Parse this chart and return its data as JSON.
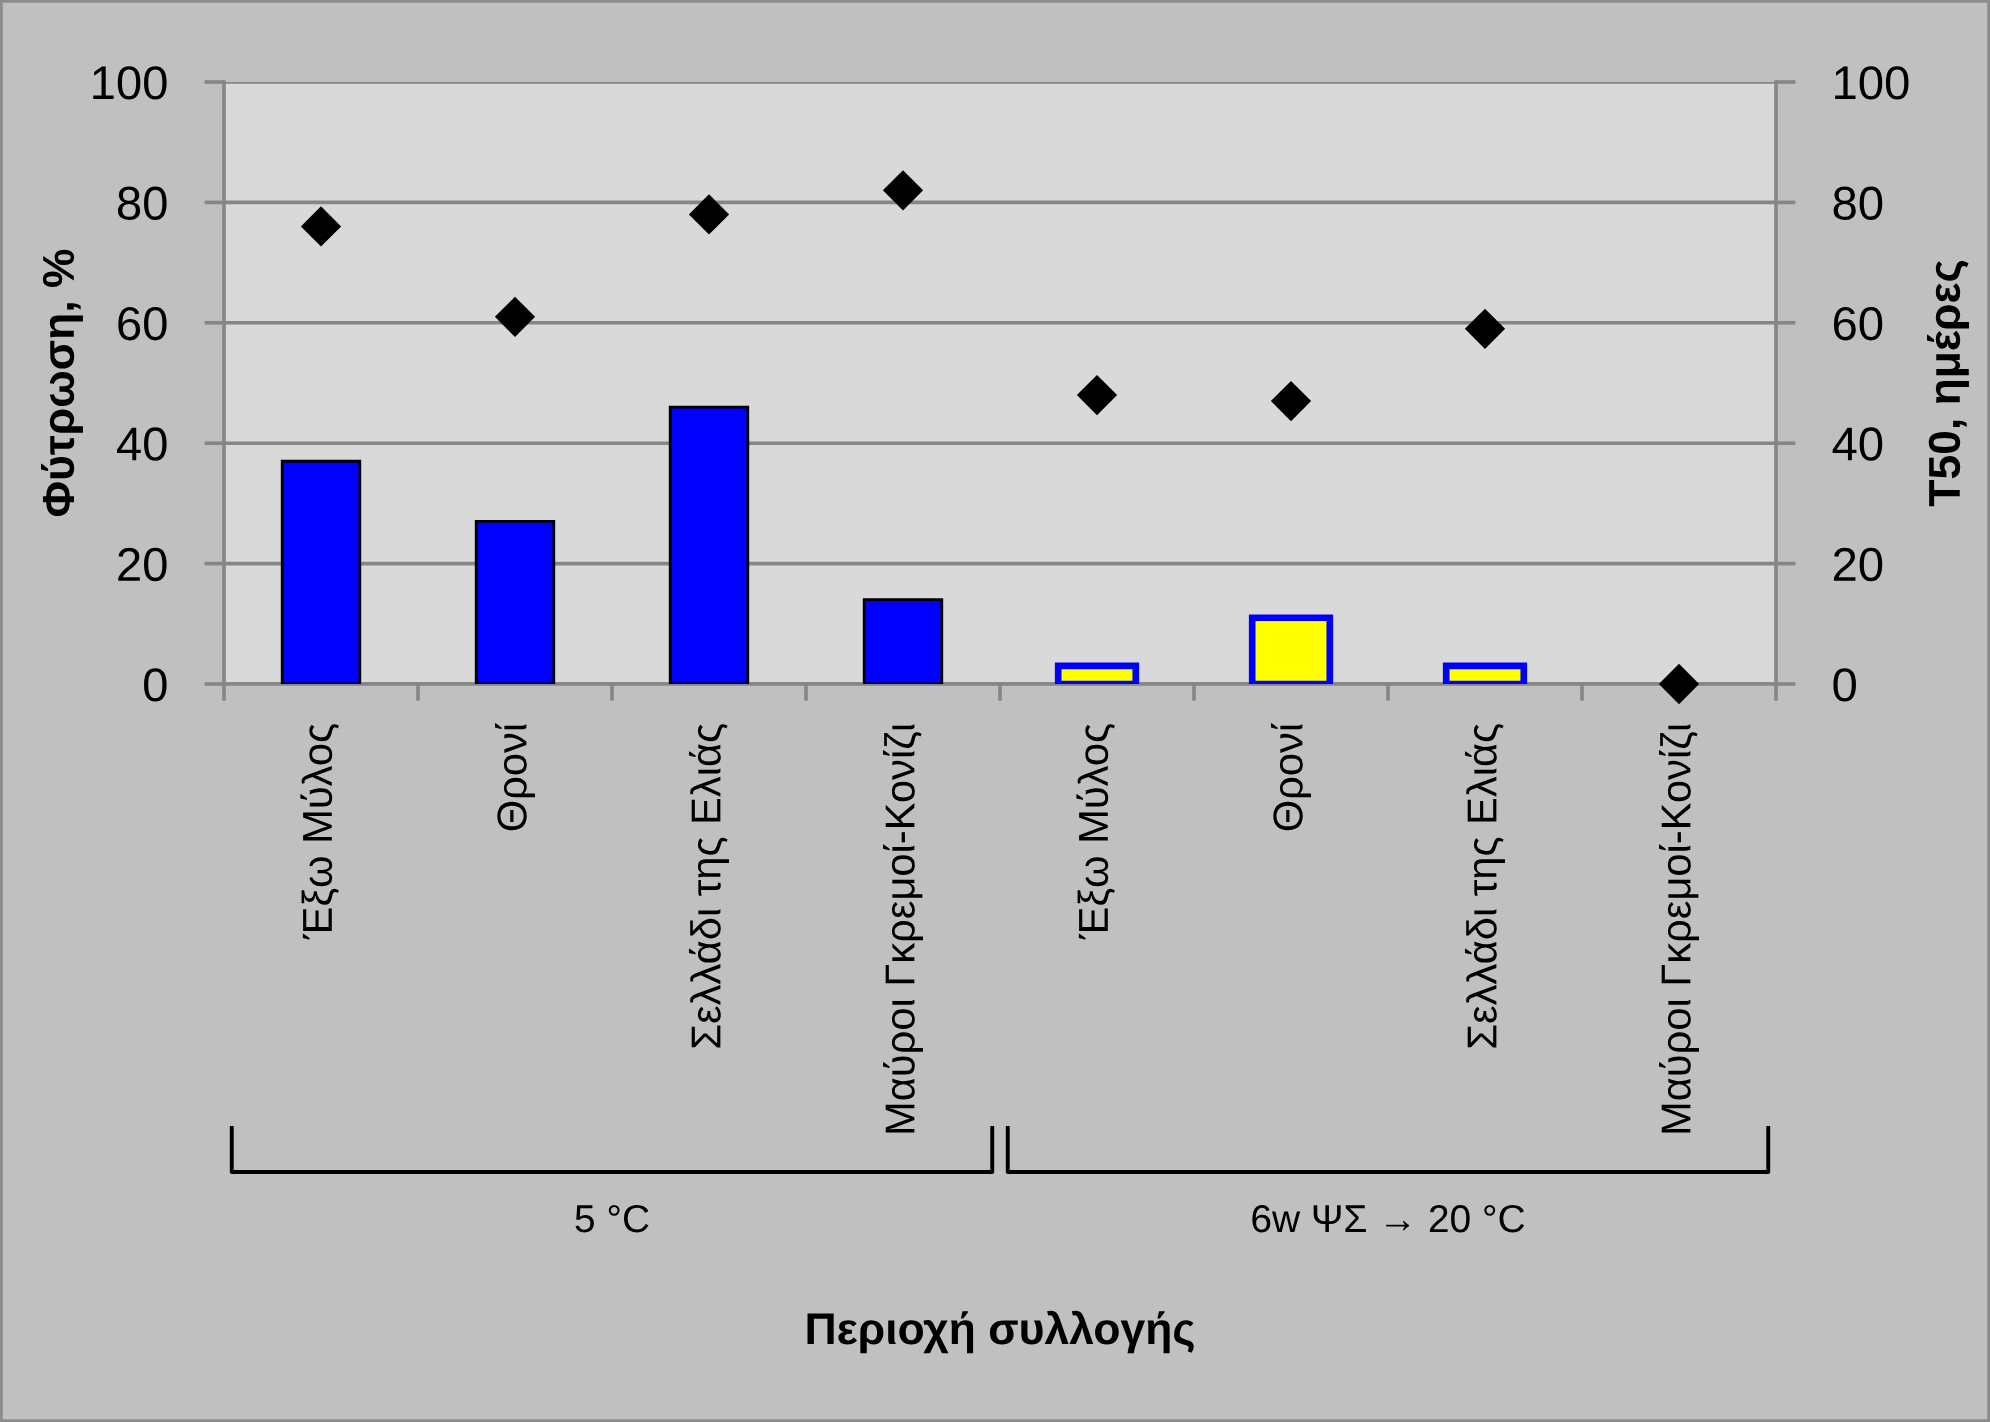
{
  "chart_data": {
    "type": "bar",
    "xlabel": "Περιοχή συλλογής",
    "ylabel": "Φύτρωση, %",
    "y2label": "T50, ημέρες",
    "categories": [
      "Έξω Μύλος",
      "Θρονί",
      "Σελλάδι της Ελιάς",
      "Μαύροι Γκρεμοί-Κονίζι",
      "Έξω Μύλος",
      "Θρονί",
      "Σελλάδι της Ελιάς",
      "Μαύροι Γκρεμοί-Κονίζι"
    ],
    "series": [
      {
        "colors": [
          "#0000ff",
          "#0000ff",
          "#0000ff",
          "#0000ff",
          "#ffff00",
          "#ffff00",
          "#ffff00",
          "#ffff00"
        ],
        "values": [
          37,
          27,
          46,
          14,
          3,
          11,
          3,
          null
        ]
      },
      {
        "type": "scatter",
        "axis": "y2",
        "color": "#000000",
        "values": [
          76,
          61,
          78,
          82,
          48,
          47,
          59,
          0
        ]
      }
    ],
    "ylim": [
      0,
      100
    ],
    "yticks": [
      0,
      20,
      40,
      60,
      80,
      100
    ],
    "y2lim": [
      0,
      100
    ],
    "y2ticks": [
      0,
      20,
      40,
      60,
      80,
      100
    ],
    "grid": "y",
    "marker": "diamond",
    "annotations": [
      "5 °C",
      "6w ΨΣ → 20 °C"
    ]
  }
}
